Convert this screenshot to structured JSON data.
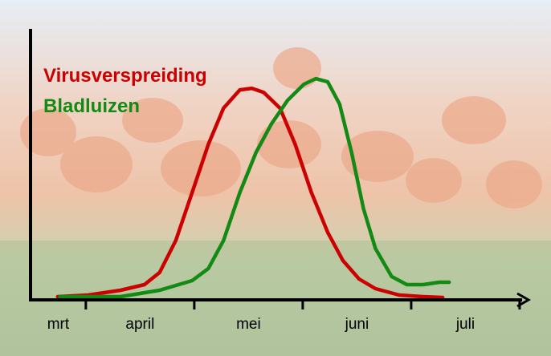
{
  "chart_data": {
    "type": "line",
    "categories": [
      "mrt",
      "april",
      "mei",
      "juni",
      "juli"
    ],
    "xlim": [
      0.49,
      5.03
    ],
    "xticks": [
      1,
      2,
      3,
      4,
      5
    ],
    "ylim": [
      0,
      100
    ],
    "series": [
      {
        "name": "Virusverspreiding",
        "color": "#cc0000",
        "x": [
          0.74,
          1.02,
          1.32,
          1.54,
          1.68,
          1.83,
          1.98,
          2.13,
          2.27,
          2.42,
          2.53,
          2.64,
          2.79,
          2.93,
          3.08,
          3.23,
          3.37,
          3.52,
          3.67,
          3.89,
          4.11,
          4.29
        ],
        "values": [
          0.6,
          1.2,
          3.0,
          5.1,
          9.6,
          21.6,
          39.5,
          57.5,
          71.0,
          77.8,
          78.4,
          76.9,
          71.0,
          57.5,
          39.5,
          24.6,
          14.1,
          7.2,
          3.6,
          1.2,
          0.6,
          0.3
        ]
      },
      {
        "name": "Bladluizen",
        "color": "#138a13",
        "x": [
          0.76,
          1.32,
          1.68,
          1.98,
          2.13,
          2.27,
          2.42,
          2.57,
          2.71,
          2.86,
          3.01,
          3.12,
          3.23,
          3.34,
          3.45,
          3.56,
          3.67,
          3.82,
          3.96,
          4.11,
          4.26,
          4.35
        ],
        "values": [
          0.6,
          0.6,
          3.0,
          6.6,
          11.1,
          21.6,
          39.5,
          54.5,
          65.0,
          73.9,
          79.9,
          82.0,
          80.8,
          72.5,
          54.5,
          33.5,
          18.6,
          8.1,
          5.1,
          5.1,
          6.0,
          6.0
        ]
      }
    ]
  }
}
